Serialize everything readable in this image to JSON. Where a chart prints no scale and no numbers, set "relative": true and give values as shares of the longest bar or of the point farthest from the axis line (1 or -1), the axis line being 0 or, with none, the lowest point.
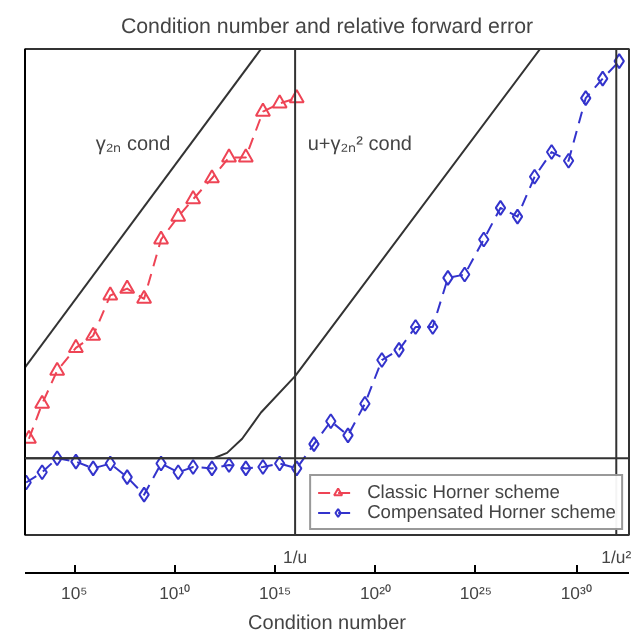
{
  "chart_data": {
    "type": "line",
    "title": "Condition number and relative forward error",
    "xlabel": "Condition number",
    "relative": true,
    "log": "x",
    "tick_labels": "x",
    "grid": false,
    "legend": "bottom right",
    "xlim": [
      350,
      4.3e+32
    ],
    "xticks": [
      {
        "value": 100000.0,
        "label": "10⁵"
      },
      {
        "value": 10000000000.0,
        "label": "10¹⁰"
      },
      {
        "value": 1000000000000000.0,
        "label": "10¹⁵"
      },
      {
        "value": 1e+20,
        "label": "10²⁰"
      },
      {
        "value": 1e+25,
        "label": "10²⁵"
      },
      {
        "value": 1e+30,
        "label": "10³⁰"
      }
    ],
    "series": [
      {
        "name": "Classic Horner scheme",
        "color": "#ee4455",
        "marker": "triangle",
        "line_style": "dashed",
        "x": [
          550,
          2500.0,
          14000.0,
          120000.0,
          870000.0,
          6200000.0,
          43000000.0,
          300000000.0,
          2100000000.0,
          15000000000.0,
          83000000000.0,
          720000000000.0,
          5100000000000.0,
          35000000000000.0,
          250000000000000.0,
          1700000000000000.0,
          1.2e+16
        ],
        "values": [
          0.198,
          0.27,
          0.338,
          0.385,
          0.41,
          0.493,
          0.507,
          0.486,
          0.608,
          0.655,
          0.691,
          0.734,
          0.777,
          0.777,
          0.871,
          0.888,
          0.899
        ]
      },
      {
        "name": "Compensated Horner scheme",
        "color": "#3333cc",
        "marker": "diamond",
        "line_style": "dashed",
        "x": [
          400,
          2500.0,
          14000.0,
          120000.0,
          870000.0,
          6200000.0,
          43000000.0,
          300000000.0,
          2100000000.0,
          15000000000.0,
          83000000000.0,
          720000000000.0,
          5100000000000.0,
          35000000000000.0,
          250000000000000.0,
          1700000000000000.0,
          1.2e+16,
          8.7e+16,
          6e+17,
          4.3e+18,
          3e+19,
          2.1e+20,
          1.5e+21,
          1e+22,
          7.2e+22,
          4.1e+23,
          2.8e+24,
          2.5e+25,
          1.7e+26,
          1.2e+27,
          8.5e+27,
          6e+28,
          4.2e+29,
          3e+30,
          2.1e+31,
          1.4e+32
        ],
        "values": [
          0.108,
          0.129,
          0.158,
          0.151,
          0.137,
          0.147,
          0.119,
          0.083,
          0.147,
          0.129,
          0.14,
          0.137,
          0.144,
          0.137,
          0.14,
          0.147,
          0.137,
          0.187,
          0.234,
          0.205,
          0.27,
          0.36,
          0.381,
          0.428,
          0.428,
          0.529,
          0.536,
          0.608,
          0.673,
          0.655,
          0.737,
          0.788,
          0.77,
          0.899,
          0.939,
          0.975
        ]
      },
      {
        "color": "#333333",
        "marker": "none",
        "line_style": "solid",
        "x": [
          350,
          200000000000000.0
        ],
        "values": [
          0.345,
          1.0
        ]
      },
      {
        "color": "#333333",
        "marker": "none",
        "line_style": "solid",
        "x": [
          350,
          890000000000.0,
          4100000000000.0,
          23000000000000.0,
          200000000000000.0,
          1e+16,
          1.6e+28
        ],
        "values": [
          0.158,
          0.158,
          0.169,
          0.198,
          0.252,
          0.327,
          1.0
        ]
      }
    ],
    "ref_lines": [
      {
        "axis": "x",
        "value": 1e+16,
        "label": "1/u",
        "color": "#333333"
      },
      {
        "axis": "x",
        "value": 1e+32,
        "label": "1/u²",
        "color": "#333333"
      },
      {
        "axis": "y",
        "value": 0.158,
        "color": "#333333"
      }
    ],
    "annotations": [
      "γ₂ₙ cond",
      "u+γ₂ₙ² cond"
    ]
  }
}
